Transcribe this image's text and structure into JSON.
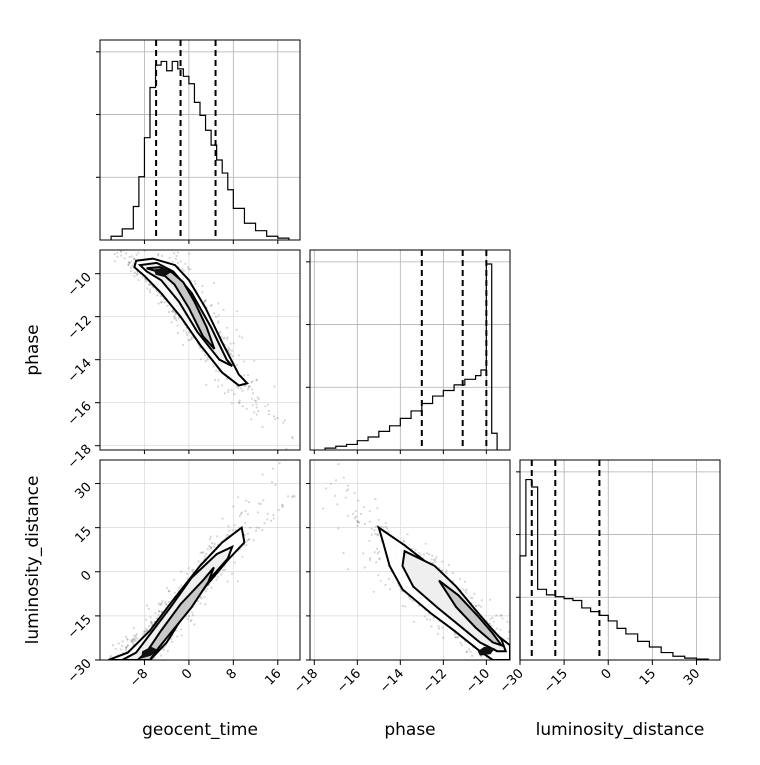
{
  "chart_data": {
    "type": "corner",
    "parameters": [
      "geocent_time",
      "phase",
      "luminosity_distance"
    ],
    "axis_labels": {
      "x": [
        "geocent_time",
        "phase",
        "luminosity_distance"
      ],
      "y": [
        "",
        "phase",
        "luminosity_distance"
      ]
    },
    "ranges": {
      "geocent_time": [
        -16,
        20
      ],
      "phase": [
        -18.2,
        -8.9
      ],
      "luminosity_distance": [
        -30,
        38
      ]
    },
    "ticks": {
      "geocent_time": [
        -8,
        0,
        8,
        16
      ],
      "phase": [
        -18,
        -16,
        -14,
        -12,
        -10
      ],
      "luminosity_distance": [
        -30,
        -15,
        0,
        15,
        30
      ]
    },
    "tick_labels": {
      "geocent_time": [
        "−8",
        "0",
        "8",
        "16"
      ],
      "phase": [
        "−18",
        "−16",
        "−14",
        "−12",
        "−10"
      ],
      "luminosity_distance": [
        "−30",
        "−15",
        "0",
        "15",
        "30"
      ]
    },
    "quantile_lines": {
      "geocent_time": [
        -5.9,
        -1.5,
        4.8
      ],
      "phase": [
        -13.0,
        -11.1,
        -10.0
      ],
      "luminosity_distance": [
        -26.0,
        -18.0,
        -3.0
      ]
    },
    "histograms": {
      "geocent_time": {
        "bin_edges": [
          -14,
          -12,
          -10,
          -9,
          -8,
          -7,
          -6,
          -5,
          -4,
          -3,
          -2,
          -1,
          0,
          1,
          2,
          3,
          4,
          5,
          6,
          7,
          8,
          10,
          12,
          14,
          16,
          18
        ],
        "counts": [
          0.02,
          0.06,
          0.18,
          0.34,
          0.55,
          0.82,
          0.94,
          0.96,
          0.91,
          0.96,
          0.92,
          0.88,
          0.84,
          0.74,
          0.67,
          0.59,
          0.51,
          0.43,
          0.36,
          0.27,
          0.17,
          0.09,
          0.05,
          0.02,
          0.01
        ]
      },
      "phase": {
        "bin_edges": [
          -17.5,
          -17.0,
          -16.5,
          -16.0,
          -15.5,
          -15.0,
          -14.5,
          -14.0,
          -13.5,
          -13.0,
          -12.5,
          -12.0,
          -11.5,
          -11.0,
          -10.5,
          -10.25,
          -10.0,
          -9.75,
          -9.5
        ],
        "counts": [
          0.01,
          0.02,
          0.03,
          0.05,
          0.07,
          0.1,
          0.13,
          0.17,
          0.21,
          0.25,
          0.29,
          0.32,
          0.35,
          0.38,
          0.4,
          0.43,
          1.0,
          0.09
        ]
      },
      "luminosity_distance": {
        "bin_edges": [
          -30,
          -28,
          -26,
          -24,
          -21,
          -18,
          -15,
          -12,
          -9,
          -6,
          -3,
          0,
          3,
          6,
          10,
          14,
          18,
          22,
          26,
          30,
          34
        ],
        "counts": [
          0.56,
          0.97,
          0.93,
          0.38,
          0.35,
          0.34,
          0.33,
          0.32,
          0.28,
          0.26,
          0.24,
          0.21,
          0.17,
          0.14,
          0.1,
          0.07,
          0.04,
          0.02,
          0.01,
          0.005
        ]
      }
    },
    "pairs": [
      {
        "x": "geocent_time",
        "y": "phase",
        "correlation": "negative",
        "contour_levels": [
          [
            [
              -9.5,
              -9.4
            ],
            [
              -6.5,
              -9.3
            ],
            [
              -2.5,
              -9.6
            ],
            [
              0,
              -10.3
            ],
            [
              3,
              -11.6
            ],
            [
              6,
              -13.2
            ],
            [
              9,
              -14.7
            ],
            [
              10.5,
              -15.1
            ],
            [
              9,
              -15.2
            ],
            [
              6,
              -14.6
            ],
            [
              2,
              -13.3
            ],
            [
              -1.5,
              -12.0
            ],
            [
              -5,
              -10.9
            ],
            [
              -8,
              -10.1
            ],
            [
              -9.8,
              -9.7
            ]
          ],
          [
            [
              -8.8,
              -9.6
            ],
            [
              -5.8,
              -9.5
            ],
            [
              -2.8,
              -9.9
            ],
            [
              0.5,
              -10.9
            ],
            [
              4,
              -12.5
            ],
            [
              6.8,
              -14.0
            ],
            [
              7.8,
              -14.3
            ],
            [
              5.5,
              -14.0
            ],
            [
              1.5,
              -12.7
            ],
            [
              -1.8,
              -11.3
            ],
            [
              -5,
              -10.3
            ],
            [
              -7.6,
              -9.9
            ]
          ],
          [
            [
              -7.6,
              -9.75
            ],
            [
              -5.2,
              -9.7
            ],
            [
              -3.0,
              -9.95
            ],
            [
              -1.0,
              -10.4
            ],
            [
              1,
              -11.3
            ],
            [
              3.2,
              -12.5
            ],
            [
              4.6,
              -13.5
            ],
            [
              2.5,
              -12.9
            ],
            [
              0,
              -11.6
            ],
            [
              -2.6,
              -10.5
            ],
            [
              -5.0,
              -9.95
            ]
          ],
          [
            [
              -6.3,
              -9.8
            ],
            [
              -4.3,
              -9.75
            ],
            [
              -3.3,
              -9.95
            ],
            [
              -4.5,
              -10.15
            ],
            [
              -6.0,
              -10.05
            ]
          ]
        ]
      },
      {
        "x": "geocent_time",
        "y": "luminosity_distance",
        "correlation": "positive",
        "contour_levels": [
          [
            [
              -14.5,
              -30
            ],
            [
              -11,
              -27.5
            ],
            [
              -7,
              -20
            ],
            [
              -3,
              -10
            ],
            [
              2,
              2
            ],
            [
              6,
              10
            ],
            [
              9.5,
              15
            ],
            [
              10,
              10
            ],
            [
              7,
              4
            ],
            [
              3,
              -5
            ],
            [
              -1,
              -15
            ],
            [
              -4,
              -24
            ],
            [
              -7,
              -30
            ]
          ],
          [
            [
              -12,
              -30
            ],
            [
              -9.5,
              -27.5
            ],
            [
              -6.5,
              -20
            ],
            [
              -3.3,
              -12
            ],
            [
              0.5,
              -2
            ],
            [
              5,
              6
            ],
            [
              7.8,
              8.5
            ],
            [
              7,
              4.5
            ],
            [
              3.5,
              -3
            ],
            [
              0,
              -12
            ],
            [
              -3.5,
              -21
            ],
            [
              -6.5,
              -28.5
            ],
            [
              -8,
              -30
            ]
          ],
          [
            [
              -9.2,
              -30
            ],
            [
              -7.5,
              -27
            ],
            [
              -5,
              -20
            ],
            [
              -1.5,
              -11
            ],
            [
              2.5,
              -3
            ],
            [
              4.5,
              1.5
            ],
            [
              3.5,
              -3.5
            ],
            [
              0.5,
              -12
            ],
            [
              -2.5,
              -19
            ],
            [
              -5.5,
              -26
            ],
            [
              -7,
              -30
            ]
          ],
          [
            [
              -8.6,
              -29.5
            ],
            [
              -6.8,
              -28.5
            ],
            [
              -5.6,
              -26.5
            ],
            [
              -6.8,
              -25.5
            ],
            [
              -8.4,
              -27
            ]
          ]
        ]
      },
      {
        "x": "phase",
        "y": "luminosity_distance",
        "correlation": "negative",
        "contour_levels": [
          [
            [
              -15.0,
              15
            ],
            [
              -13.8,
              9
            ],
            [
              -12.4,
              1
            ],
            [
              -11.3,
              -7
            ],
            [
              -10.3,
              -15
            ],
            [
              -9.6,
              -21
            ],
            [
              -8.9,
              -25
            ],
            [
              -8.9,
              -30
            ],
            [
              -9.7,
              -30
            ],
            [
              -10.3,
              -27
            ],
            [
              -11.5,
              -20
            ],
            [
              -12.6,
              -14
            ],
            [
              -13.9,
              -6
            ],
            [
              -14.5,
              2
            ],
            [
              -14.8,
              10
            ]
          ],
          [
            [
              -13.8,
              7
            ],
            [
              -12.4,
              2
            ],
            [
              -11.4,
              -5
            ],
            [
              -10.5,
              -13
            ],
            [
              -9.8,
              -19
            ],
            [
              -9.3,
              -23
            ],
            [
              -9.1,
              -27
            ],
            [
              -9.5,
              -27
            ],
            [
              -10.3,
              -24
            ],
            [
              -11.3,
              -18
            ],
            [
              -12.3,
              -12
            ],
            [
              -13.4,
              -5
            ],
            [
              -13.9,
              2
            ]
          ],
          [
            [
              -12.2,
              -3
            ],
            [
              -11.3,
              -8
            ],
            [
              -10.4,
              -15
            ],
            [
              -9.7,
              -21
            ],
            [
              -9.3,
              -25
            ],
            [
              -9.7,
              -24
            ],
            [
              -10.5,
              -19
            ],
            [
              -11.4,
              -12
            ]
          ],
          [
            [
              -10.3,
              -28.5
            ],
            [
              -9.8,
              -28
            ],
            [
              -9.6,
              -26
            ],
            [
              -10.1,
              -25.5
            ],
            [
              -10.4,
              -27
            ]
          ]
        ]
      }
    ]
  }
}
